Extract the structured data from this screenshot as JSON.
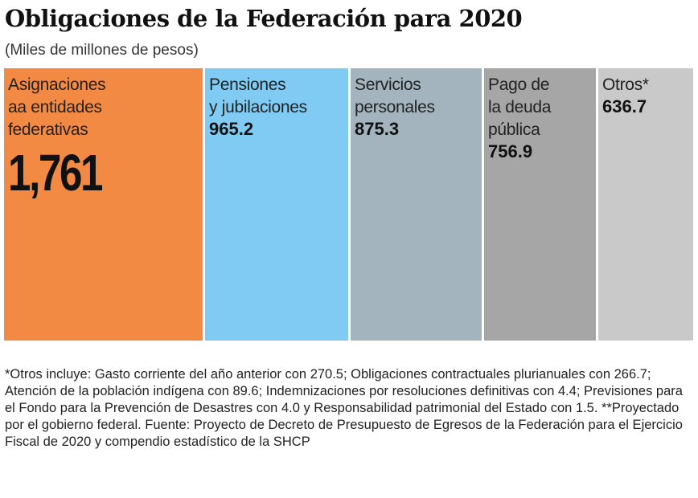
{
  "chart_data": {
    "type": "bar",
    "title": "Obligaciones de la Federación para 2020",
    "subtitle": "(Miles de millones de pesos)",
    "categories": [
      "Asignaciones\naa entidades\nfederativas",
      "Pensiones\ny jubilaciones",
      "Servicios\npersonales",
      "Pago de\nla deuda\npública",
      "Otros*"
    ],
    "values": [
      1761,
      965.2,
      875.3,
      756.9,
      636.7
    ],
    "value_labels": [
      "1,761",
      "965.2",
      "875.3",
      "756.9",
      "636.7"
    ],
    "colors": [
      "#F28A44",
      "#7FCBF3",
      "#A3B4BE",
      "#A6A6A6",
      "#C9C9C9"
    ],
    "note": "*Otros incluye: Gasto corriente del año anterior con 270.5; Obligaciones contractuales plurianuales con 266.7; Atención de la población indígena con 89.6; Indemnizaciones por resoluciones definitivas con 4.4; Previsiones para el Fondo para la Prevención de Desastres con 4.0 y Responsabilidad patrimonial del Estado con 1.5. **Proyectado por el gobierno federal. Fuente: Proyecto de Decreto de Presupuesto de Egresos de la Federación para el Ejercicio Fiscal de 2020 y compendio estadístico de la SHCP"
  }
}
